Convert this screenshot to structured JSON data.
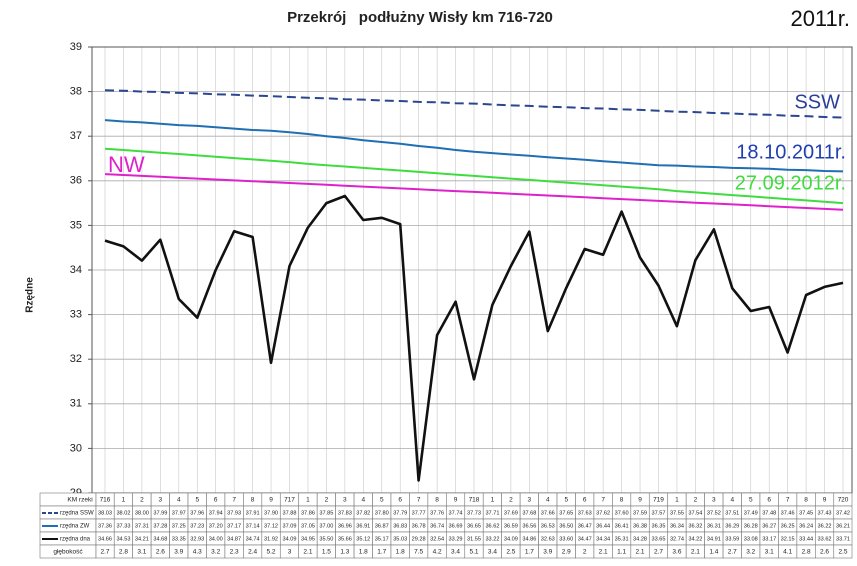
{
  "chart_data": {
    "type": "line",
    "title": "Przekrój   podłużny Wisły km 716-720",
    "corner_label": "2011r.",
    "ylabel": "Rzędne",
    "categories_label": "KM rzeki",
    "categories": [
      "716",
      "1",
      "2",
      "3",
      "4",
      "5",
      "6",
      "7",
      "8",
      "9",
      "717",
      "1",
      "2",
      "3",
      "4",
      "5",
      "6",
      "7",
      "8",
      "9",
      "718",
      "1",
      "2",
      "3",
      "4",
      "5",
      "6",
      "7",
      "8",
      "9",
      "719",
      "1",
      "2",
      "3",
      "4",
      "5",
      "6",
      "7",
      "8",
      "9",
      "720"
    ],
    "ylim": [
      29,
      39
    ],
    "yticks": [
      29,
      30,
      31,
      32,
      33,
      34,
      35,
      36,
      37,
      38,
      39
    ],
    "grid": true,
    "series": [
      {
        "name": "rzędna SSW",
        "color": "#2b4690",
        "dashed": true,
        "values": [
          38.03,
          38.02,
          38.0,
          37.99,
          37.97,
          37.96,
          37.94,
          37.93,
          37.91,
          37.9,
          37.88,
          37.86,
          37.85,
          37.83,
          37.82,
          37.8,
          37.79,
          37.77,
          37.76,
          37.74,
          37.73,
          37.71,
          37.69,
          37.68,
          37.66,
          37.65,
          37.63,
          37.62,
          37.6,
          37.59,
          37.57,
          37.55,
          37.54,
          37.52,
          37.51,
          37.49,
          37.48,
          37.46,
          37.45,
          37.43,
          37.42
        ],
        "value_labels": [
          "38.03",
          "38.02",
          "38.00",
          "37.99",
          "37.97",
          "37.96",
          "37.94",
          "37.93",
          "37.91",
          "37.90",
          "37.88",
          "37.86",
          "37.85",
          "37.83",
          "37.82",
          "37.80",
          "37.79",
          "37.77",
          "37.76",
          "37.74",
          "37.73",
          "37.71",
          "37.69",
          "37.68",
          "37.66",
          "37.65",
          "37.63",
          "37.62",
          "37.60",
          "37.59",
          "37.57",
          "37.55",
          "37.54",
          "37.52",
          "37.51",
          "37.49",
          "37.48",
          "37.46",
          "37.45",
          "37.43",
          "37.42"
        ]
      },
      {
        "name": "rzędna ZW",
        "color": "#1f6fb2",
        "values": [
          37.36,
          37.33,
          37.31,
          37.28,
          37.25,
          37.23,
          37.2,
          37.17,
          37.14,
          37.12,
          37.09,
          37.05,
          37.0,
          36.96,
          36.91,
          36.87,
          36.83,
          36.78,
          36.74,
          36.69,
          36.65,
          36.62,
          36.59,
          36.56,
          36.53,
          36.5,
          36.47,
          36.44,
          36.41,
          36.38,
          36.35,
          36.34,
          36.32,
          36.31,
          36.29,
          36.28,
          36.27,
          36.25,
          36.24,
          36.22,
          36.21
        ],
        "value_labels": [
          "37.36",
          "37.33",
          "37.31",
          "37.28",
          "37.25",
          "37.23",
          "37.20",
          "37.17",
          "37.14",
          "37.12",
          "37.09",
          "37.05",
          "37.00",
          "36.96",
          "36.91",
          "36.87",
          "36.83",
          "36.78",
          "36.74",
          "36.69",
          "36.65",
          "36.62",
          "36.59",
          "36.56",
          "36.53",
          "36.50",
          "36.47",
          "36.44",
          "36.41",
          "36.38",
          "36.35",
          "36.34",
          "36.32",
          "36.31",
          "36.29",
          "36.28",
          "36.27",
          "36.25",
          "36.24",
          "36.22",
          "36.21"
        ]
      },
      {
        "name": "rzędna dna",
        "color": "#111111",
        "values": [
          34.66,
          34.53,
          34.21,
          34.68,
          33.35,
          32.93,
          34.0,
          34.87,
          34.74,
          31.92,
          34.09,
          34.95,
          35.5,
          35.66,
          35.12,
          35.17,
          35.03,
          29.28,
          32.54,
          33.29,
          31.55,
          33.22,
          34.09,
          34.86,
          32.63,
          33.6,
          34.47,
          34.34,
          35.31,
          34.28,
          33.65,
          32.74,
          34.22,
          34.91,
          33.59,
          33.08,
          33.17,
          32.15,
          33.44,
          33.62,
          33.71
        ],
        "value_labels": [
          "34.66",
          "34.53",
          "34.21",
          "34.68",
          "33.35",
          "32.93",
          "34.00",
          "34.87",
          "34.74",
          "31.92",
          "34.09",
          "34.95",
          "35.50",
          "35.66",
          "35.12",
          "35.17",
          "35.03",
          "29.28",
          "32.54",
          "33.29",
          "31.55",
          "33.22",
          "34.09",
          "34.86",
          "32.63",
          "33.60",
          "34.47",
          "34.34",
          "35.31",
          "34.28",
          "33.65",
          "32.74",
          "34.22",
          "34.91",
          "33.59",
          "33.08",
          "33.17",
          "32.15",
          "33.44",
          "33.62",
          "33.71"
        ]
      },
      {
        "name": "27.09.2012r.",
        "color": "#3fdc3f",
        "values": [
          36.72,
          36.69,
          36.66,
          36.63,
          36.6,
          36.57,
          36.54,
          36.51,
          36.48,
          36.45,
          36.42,
          36.38,
          36.35,
          36.32,
          36.29,
          36.26,
          36.23,
          36.2,
          36.17,
          36.14,
          36.11,
          36.08,
          36.05,
          36.02,
          35.99,
          35.96,
          35.93,
          35.9,
          35.87,
          35.84,
          35.81,
          35.77,
          35.74,
          35.71,
          35.68,
          35.65,
          35.62,
          35.59,
          35.56,
          35.53,
          35.5
        ]
      },
      {
        "name": "NW",
        "color": "#dd22cc",
        "values": [
          36.15,
          36.13,
          36.11,
          36.09,
          36.07,
          36.05,
          36.03,
          36.01,
          35.99,
          35.97,
          35.95,
          35.93,
          35.91,
          35.89,
          35.87,
          35.85,
          35.83,
          35.81,
          35.79,
          35.77,
          35.75,
          35.73,
          35.71,
          35.69,
          35.67,
          35.65,
          35.63,
          35.61,
          35.59,
          35.57,
          35.55,
          35.53,
          35.51,
          35.49,
          35.47,
          35.45,
          35.43,
          35.41,
          35.39,
          35.37,
          35.35
        ]
      }
    ],
    "annotations": [
      {
        "text": "SSW",
        "color": "#2b3f9a"
      },
      {
        "text": "18.10.2011r.",
        "color": "#1f3fb0"
      }
    ],
    "table_rows": [
      {
        "name": "głębokość",
        "values": [
          2.7,
          2.8,
          3.1,
          2.6,
          3.9,
          4.3,
          3.2,
          2.3,
          2.4,
          5.2,
          3,
          2.1,
          1.5,
          1.3,
          1.8,
          1.7,
          1.8,
          7.5,
          4.2,
          3.4,
          5.1,
          3.4,
          2.5,
          1.7,
          3.9,
          2.9,
          2,
          2.1,
          1.1,
          2.1,
          2.7,
          3.6,
          2.1,
          1.4,
          2.7,
          3.2,
          3.1,
          4.1,
          2.8,
          2.6,
          2.5
        ]
      }
    ]
  }
}
